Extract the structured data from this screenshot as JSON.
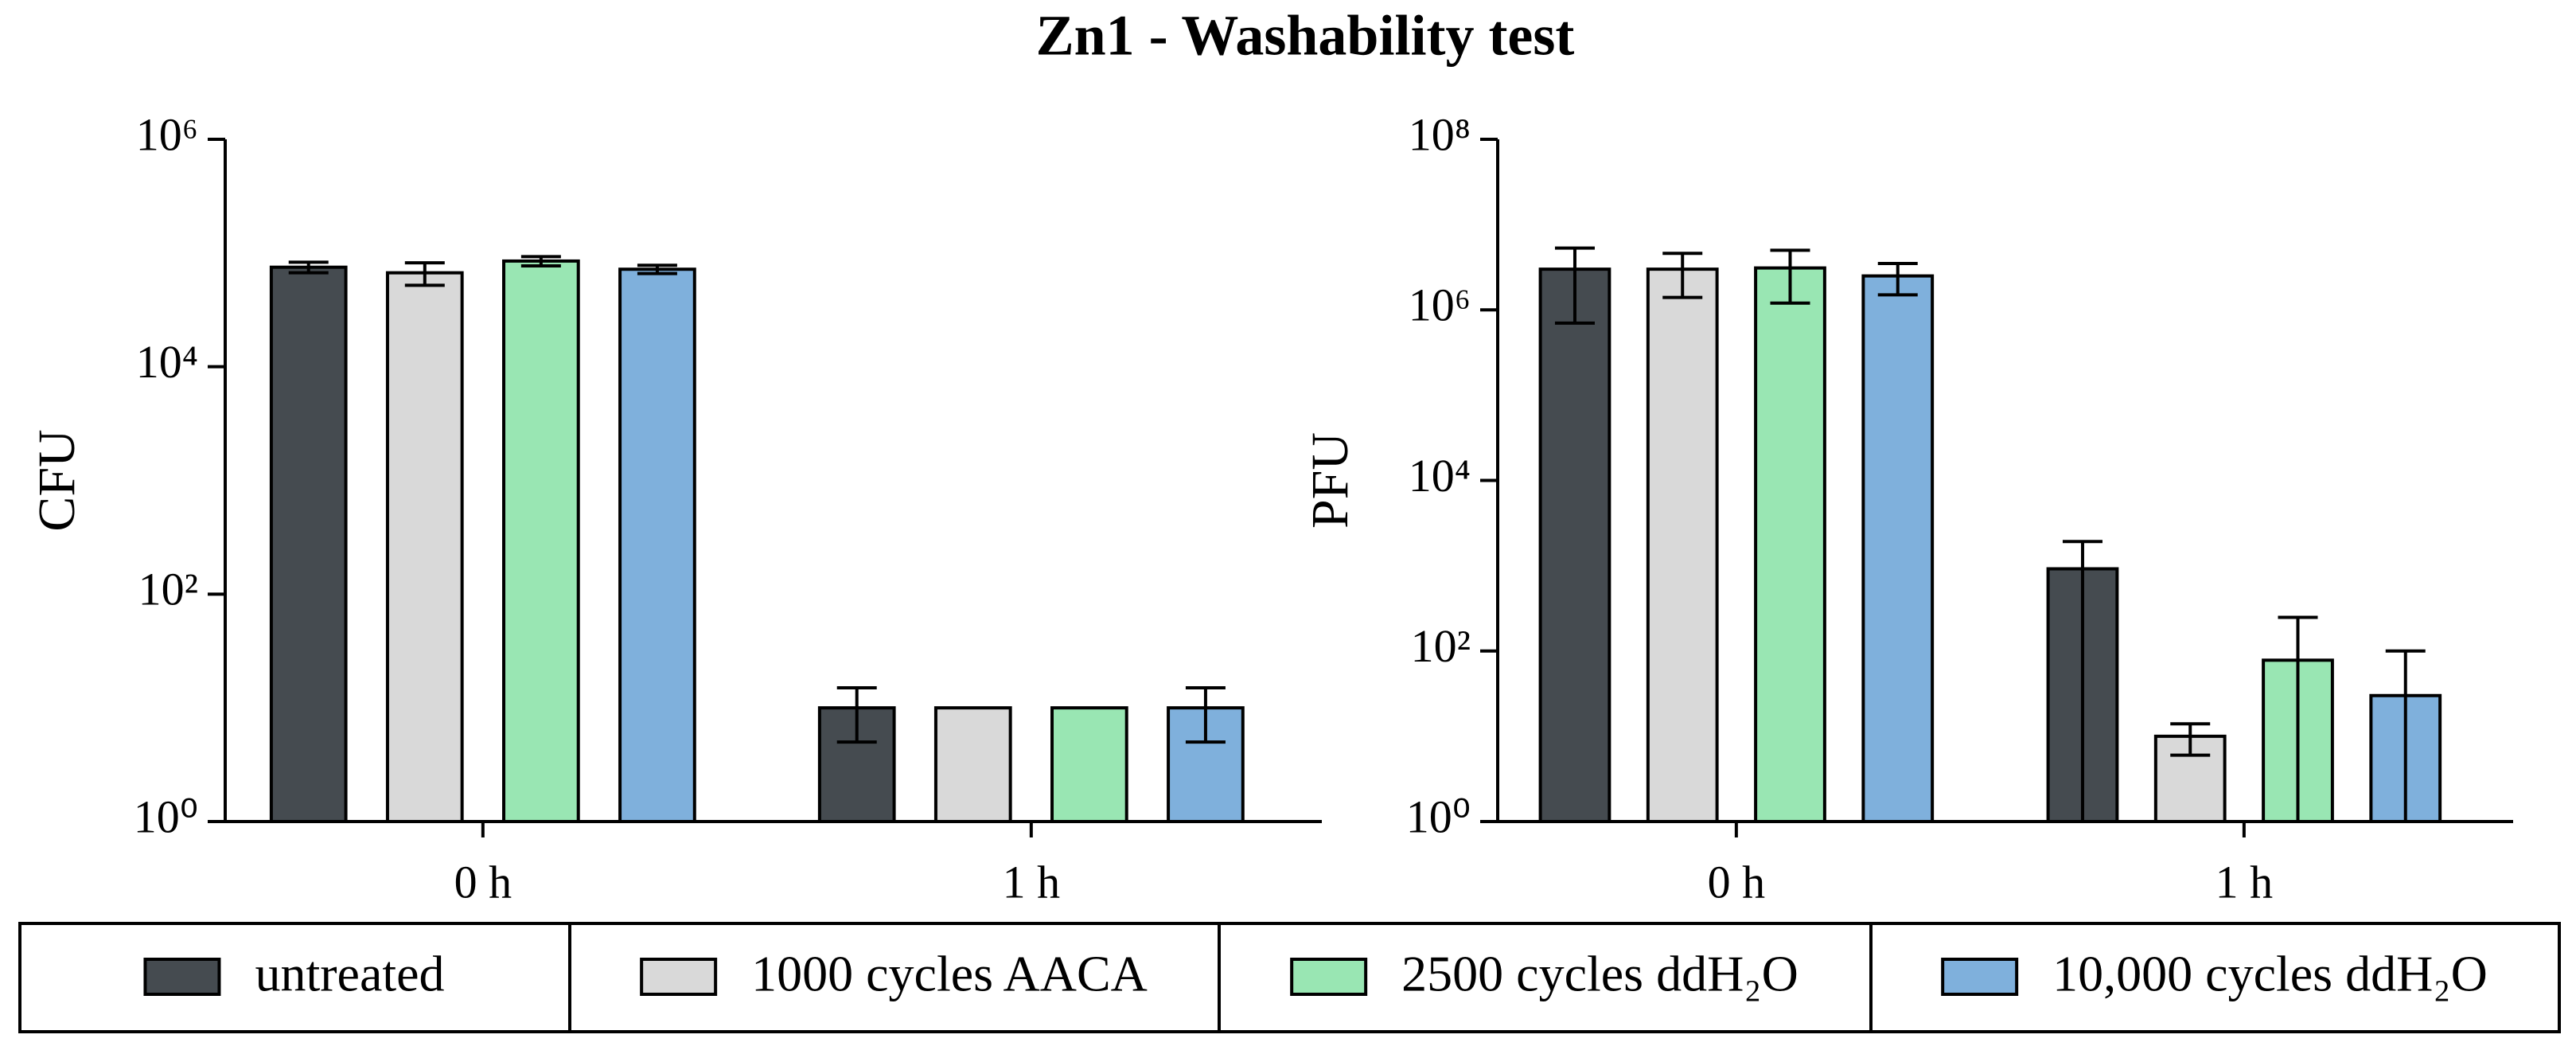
{
  "title": "Zn1 - Washability test",
  "chart_data": [
    {
      "type": "bar",
      "log_y": true,
      "ylabel": "CFU",
      "categories": [
        "0 h",
        "1 h"
      ],
      "ylim": [
        1,
        1000000
      ],
      "yticks": [
        {
          "value": 1,
          "label": "10⁰"
        },
        {
          "value": 100,
          "label": "10²"
        },
        {
          "value": 10000,
          "label": "10⁴"
        },
        {
          "value": 1000000,
          "label": "10⁶"
        }
      ],
      "series": [
        {
          "name": "untreated",
          "color": "#454b50",
          "values": [
            75000,
            10
          ],
          "errors": [
            8000,
            5
          ]
        },
        {
          "name": "1000 cycles AACA",
          "color": "#d9d9d9",
          "values": [
            67000,
            10
          ],
          "errors": [
            15000,
            0
          ]
        },
        {
          "name": "2500 cycles ddH₂O",
          "color": "#99e6b3",
          "values": [
            85000,
            10
          ],
          "errors": [
            8000,
            0
          ]
        },
        {
          "name": "10,000 cycles ddH₂O",
          "color": "#7fb0dc",
          "values": [
            72000,
            10
          ],
          "errors": [
            6000,
            5
          ]
        }
      ]
    },
    {
      "type": "bar",
      "log_y": true,
      "ylabel": "PFU",
      "categories": [
        "0 h",
        "1 h"
      ],
      "ylim": [
        1,
        100000000
      ],
      "yticks": [
        {
          "value": 1,
          "label": "10⁰"
        },
        {
          "value": 100,
          "label": "10²"
        },
        {
          "value": 10000,
          "label": "10⁴"
        },
        {
          "value": 1000000,
          "label": "10⁶"
        },
        {
          "value": 100000000,
          "label": "10⁸"
        }
      ],
      "series": [
        {
          "name": "untreated",
          "color": "#454b50",
          "values": [
            3000000,
            920
          ],
          "errors": [
            2300000,
            1000
          ]
        },
        {
          "name": "1000 cycles AACA",
          "color": "#d9d9d9",
          "values": [
            3000000,
            10
          ],
          "errors": [
            1600000,
            4
          ]
        },
        {
          "name": "2500 cycles ddH₂O",
          "color": "#99e6b3",
          "values": [
            3100000,
            78
          ],
          "errors": [
            1900000,
            170
          ]
        },
        {
          "name": "10,000 cycles ddH₂O",
          "color": "#7fb0dc",
          "values": [
            2500000,
            30
          ],
          "errors": [
            1000000,
            70
          ]
        }
      ]
    }
  ]
}
